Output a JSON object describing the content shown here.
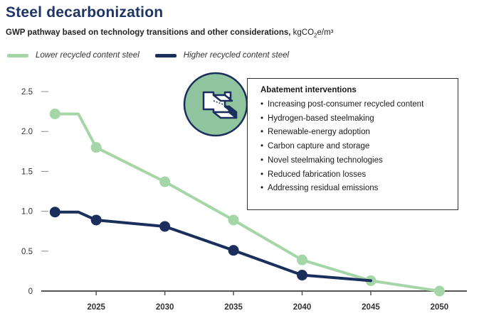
{
  "header": {
    "title": "Steel decarbonization",
    "subtitle_main": "GWP pathway based on technology transitions and other considerations,",
    "subtitle_unit_pre": "kgCO",
    "subtitle_unit_sub": "2",
    "subtitle_unit_post": "e/m³"
  },
  "legend": {
    "items": [
      {
        "label": "Lower recycled content steel",
        "color": "#a5d6a7"
      },
      {
        "label": "Higher recycled content steel",
        "color": "#1b2f5c"
      }
    ]
  },
  "callout": {
    "title": "Abatement interventions",
    "items": [
      "Increasing post-consumer recycled content",
      "Hydrogen-based steelmaking",
      "Renewable-energy adoption",
      "Carbon capture and storage",
      "Novel steelmaking technologies",
      "Reduced fabrication losses",
      "Addressing residual emissions"
    ],
    "icon": "steel-beam-icon",
    "icon_bg": "#8fc49f"
  },
  "chart_data": {
    "type": "line",
    "x_ticks": [
      2025,
      2030,
      2035,
      2040,
      2045,
      2050
    ],
    "y_ticks": [
      0,
      0.5,
      1.0,
      1.5,
      2.0,
      2.5
    ],
    "y_tick_labels": [
      "0",
      "0.5",
      "1.0",
      "1.5",
      "2.0",
      "2.5"
    ],
    "xlim": [
      2021,
      2052
    ],
    "ylim": [
      0,
      2.5
    ],
    "grid": false,
    "legend_position": "top-left",
    "series": [
      {
        "name": "Lower recycled content steel",
        "color": "#a5d6a7",
        "points": [
          [
            2022,
            2.22
          ],
          [
            2023.7,
            2.22
          ],
          [
            2025,
            1.8
          ],
          [
            2030,
            1.37
          ],
          [
            2035,
            0.89
          ],
          [
            2040,
            0.39
          ],
          [
            2045,
            0.13
          ],
          [
            2050,
            0
          ]
        ],
        "markers": [
          [
            2022,
            2.22
          ],
          [
            2025,
            1.8
          ],
          [
            2030,
            1.37
          ],
          [
            2035,
            0.89
          ],
          [
            2040,
            0.39
          ],
          [
            2045,
            0.13
          ],
          [
            2050,
            0
          ]
        ]
      },
      {
        "name": "Higher recycled content steel",
        "color": "#1b2f5c",
        "points": [
          [
            2022,
            0.99
          ],
          [
            2023.7,
            0.99
          ],
          [
            2025,
            0.89
          ],
          [
            2030,
            0.81
          ],
          [
            2035,
            0.51
          ],
          [
            2040,
            0.2
          ],
          [
            2045,
            0.13
          ]
        ],
        "markers": [
          [
            2022,
            0.99
          ],
          [
            2025,
            0.89
          ],
          [
            2030,
            0.81
          ],
          [
            2035,
            0.51
          ],
          [
            2040,
            0.2
          ]
        ]
      }
    ]
  }
}
